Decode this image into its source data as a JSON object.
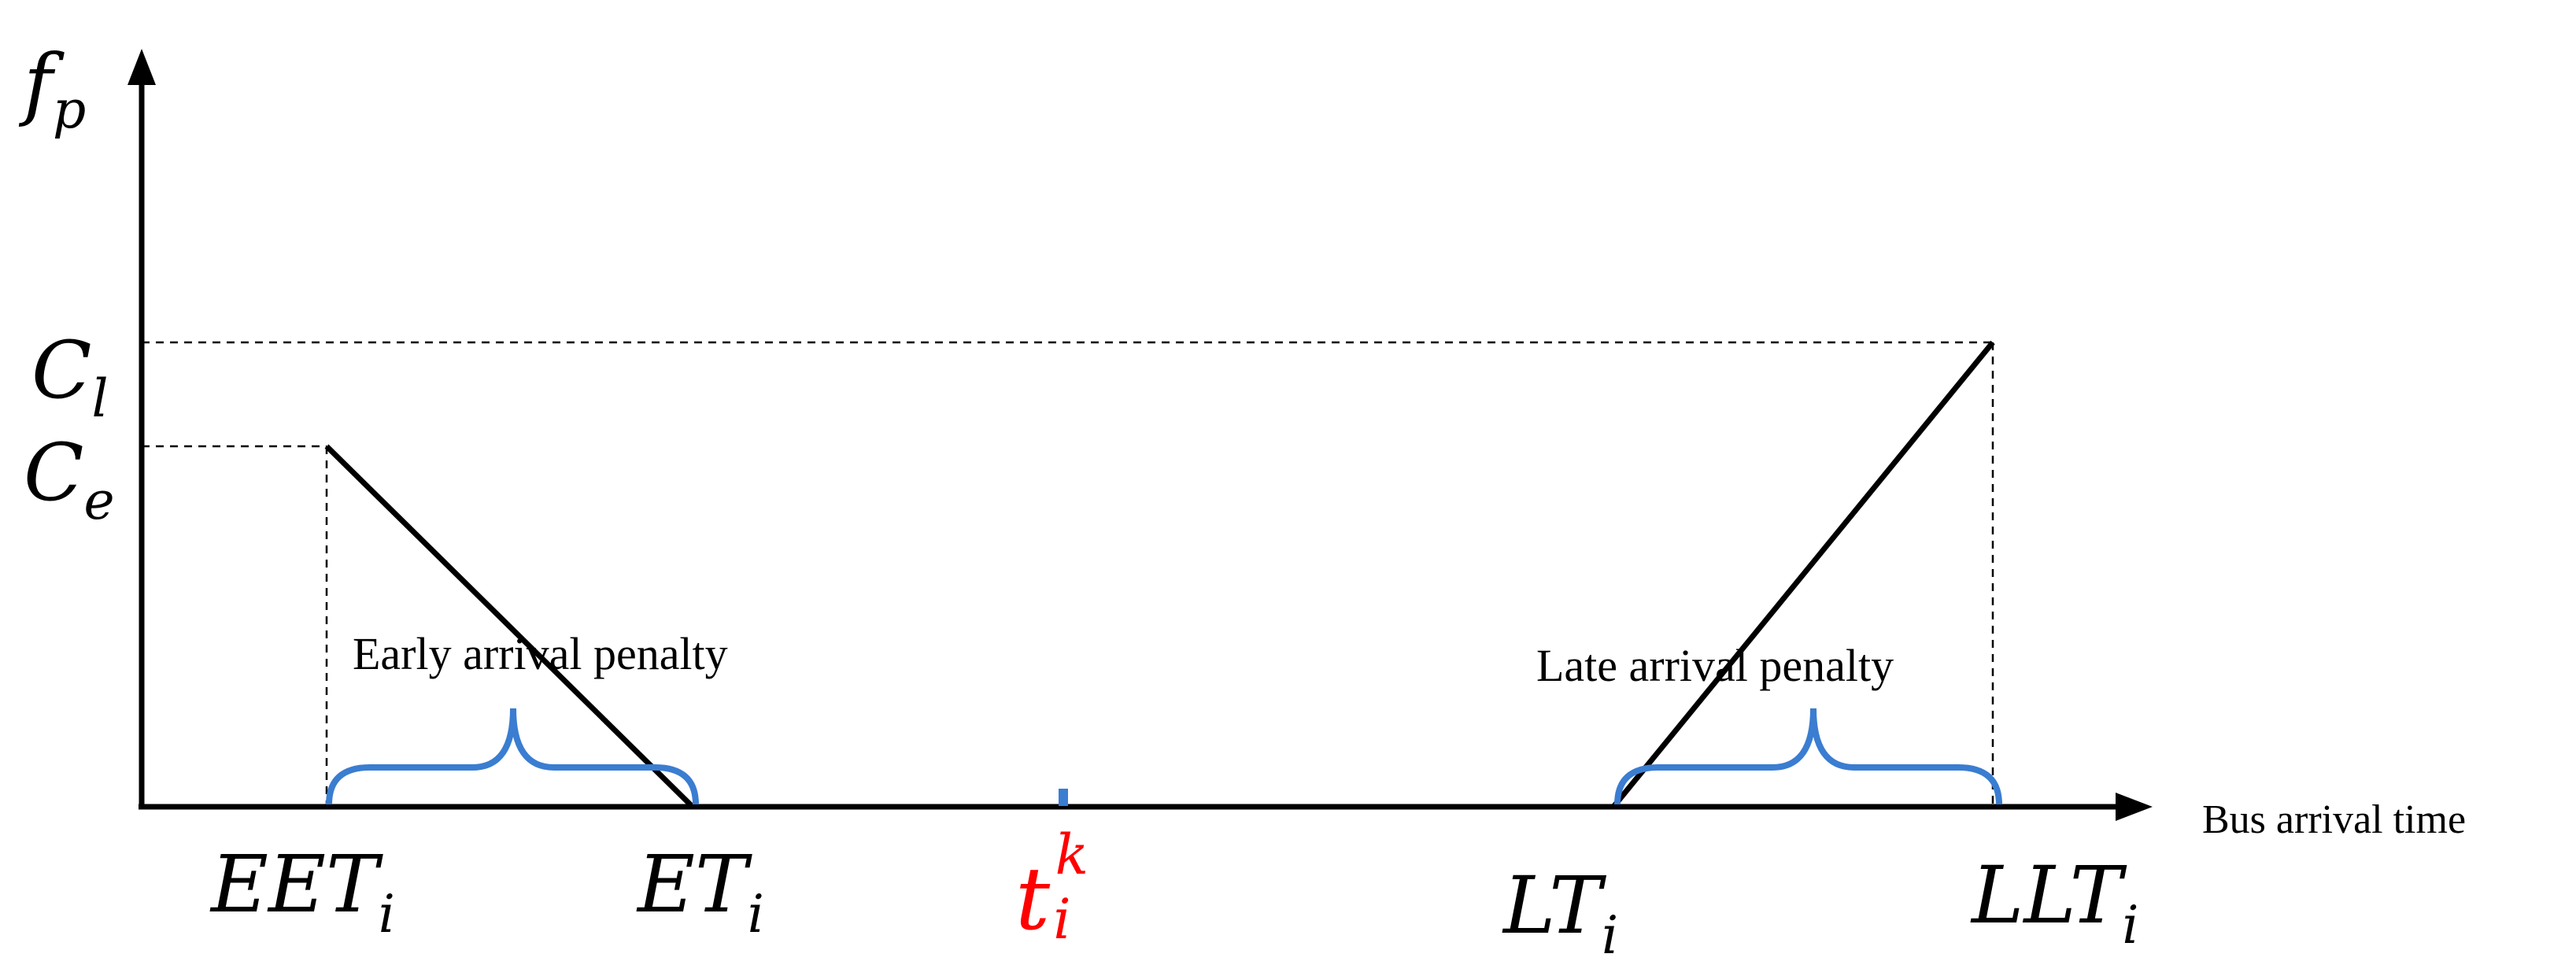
{
  "axes": {
    "y_symbol": "f",
    "y_symbol_sub": "p",
    "x_label": "Bus arrival time"
  },
  "y_levels": {
    "cl_symbol": "C",
    "cl_sub": "l",
    "ce_symbol": "C",
    "ce_sub": "e"
  },
  "x_points": {
    "eet_symbol": "EET",
    "eet_sub": "i",
    "et_symbol": "ET",
    "et_sub": "i",
    "t_symbol": "t",
    "t_sub": "i",
    "t_sup": "k",
    "lt_symbol": "LT",
    "lt_sub": "i",
    "llt_symbol": "LLT",
    "llt_sub": "i"
  },
  "annotations": {
    "early": "Early arrival penalty",
    "late": "Late arrival penalty"
  },
  "colors": {
    "axis": "#000000",
    "brace": "#3a7dd1",
    "target_time": "#ff0000"
  }
}
